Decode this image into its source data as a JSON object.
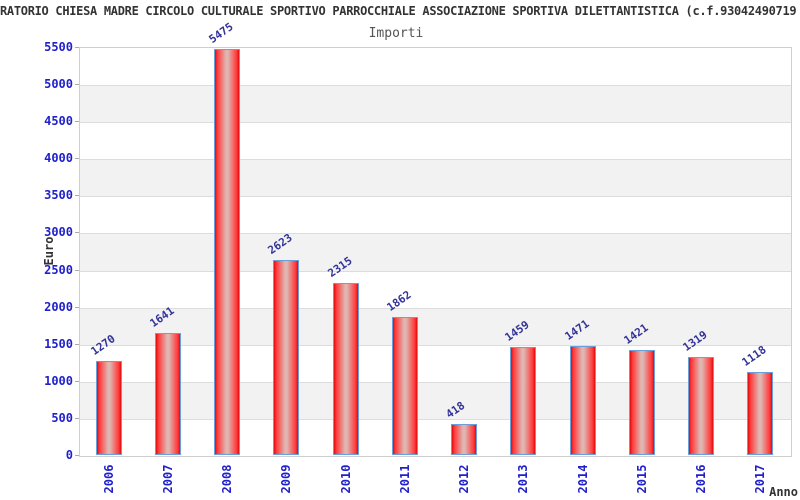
{
  "header": {
    "title": "RATORIO CHIESA MADRE CIRCOLO CULTURALE SPORTIVO PARROCCHIALE ASSOCIAZIONE SPORTIVA DILETTANTISTICA (c.f.93042490719",
    "subtitle": "Importi"
  },
  "chart_data": {
    "type": "bar",
    "title": "Importi",
    "categories": [
      "2006",
      "2007",
      "2008",
      "2009",
      "2010",
      "2011",
      "2012",
      "2013",
      "2014",
      "2015",
      "2016",
      "2017"
    ],
    "values": [
      1270,
      1641,
      5475,
      2623,
      2315,
      1862,
      418,
      1459,
      1471,
      1421,
      1319,
      1118
    ],
    "xlabel": "Anno",
    "ylabel": "Euro",
    "ylim": [
      0,
      5500
    ],
    "yticks": [
      0,
      500,
      1000,
      1500,
      2000,
      2500,
      3000,
      3500,
      4000,
      4500,
      5000,
      5500
    ],
    "grid": true,
    "legend": "none",
    "colors": {
      "bar_edge_red": "#e00d0d",
      "bar_bright_red": "#ff3a3a",
      "bar_center_pale": "#dfb6b2",
      "bar_border_blue": "#6a9fdc",
      "axis_tick_blue": "#2020cc",
      "value_label_navy": "#333399",
      "band_gray": "#f2f2f2",
      "grid_gray": "#dcdcdc",
      "plot_border_gray": "#cfcfcf",
      "title_gray": "#333333",
      "subtitle_gray": "#555555"
    }
  }
}
